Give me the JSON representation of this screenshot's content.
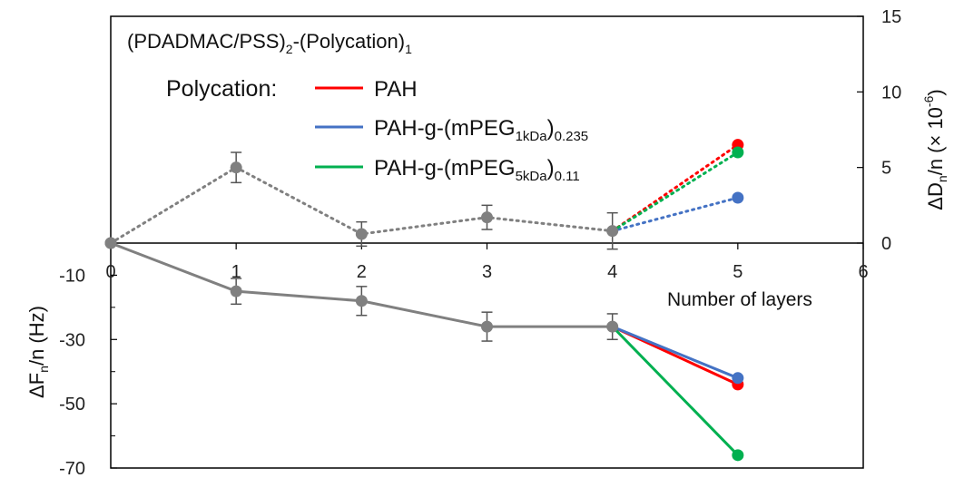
{
  "chart_data": {
    "type": "line",
    "title": "(PDADMAC/PSS)₂-(Polycation)₁",
    "legend_title": "Polycation:",
    "legend_placement": "top-center",
    "xlabel": "Number of layers",
    "ylabel_left": "ΔFₙ/n (Hz)",
    "ylabel_right": "ΔDₙ/n (× 10⁻⁶)",
    "x_ticks": [
      "0",
      "1",
      "2",
      "3",
      "4",
      "5",
      "6"
    ],
    "y_left_ticks": [
      "-10",
      "-30",
      "-50",
      "-70"
    ],
    "y_right_ticks": [
      "0",
      "5",
      "10",
      "15"
    ],
    "xlim": [
      0,
      6
    ],
    "ylim_left": [
      -70,
      0
    ],
    "ylim_right": [
      0,
      15
    ],
    "grid": false,
    "colors": {
      "base": "#808080",
      "PAH": "#ff0000",
      "mPEG1k": "#4472c4",
      "mPEG5k": "#00b050"
    },
    "base_frequency": {
      "x": [
        0,
        1,
        2,
        3,
        4
      ],
      "y": [
        0,
        -15,
        -18,
        -26,
        -26
      ],
      "err": [
        0,
        4,
        4.5,
        4.5,
        4
      ]
    },
    "base_dissipation": {
      "x": [
        0,
        1,
        2,
        3,
        4
      ],
      "y": [
        0,
        5,
        0.6,
        1.7,
        0.8
      ],
      "err": [
        0,
        1,
        0.8,
        0.8,
        1.2
      ]
    },
    "series": [
      {
        "name": "PAH",
        "color_key": "PAH",
        "frequency": {
          "x": [
            4,
            5
          ],
          "y": [
            -26,
            -44
          ]
        },
        "dissipation": {
          "x": [
            4,
            5
          ],
          "y": [
            0.8,
            6.5
          ]
        }
      },
      {
        "name": "PAH-g-(mPEG1kDa)0.235",
        "label_parts": [
          "PAH-g-(mPEG",
          "1kDa",
          ")",
          "0.235"
        ],
        "color_key": "mPEG1k",
        "frequency": {
          "x": [
            4,
            5
          ],
          "y": [
            -26,
            -42
          ]
        },
        "dissipation": {
          "x": [
            4,
            5
          ],
          "y": [
            0.8,
            3
          ]
        }
      },
      {
        "name": "PAH-g-(mPEG5kDa)0.11",
        "label_parts": [
          "PAH-g-(mPEG",
          "5kDa",
          ")",
          "0.11"
        ],
        "color_key": "mPEG5k",
        "frequency": {
          "x": [
            4,
            5
          ],
          "y": [
            -26,
            -66
          ]
        },
        "dissipation": {
          "x": [
            4,
            5
          ],
          "y": [
            0.8,
            6
          ]
        }
      }
    ]
  }
}
